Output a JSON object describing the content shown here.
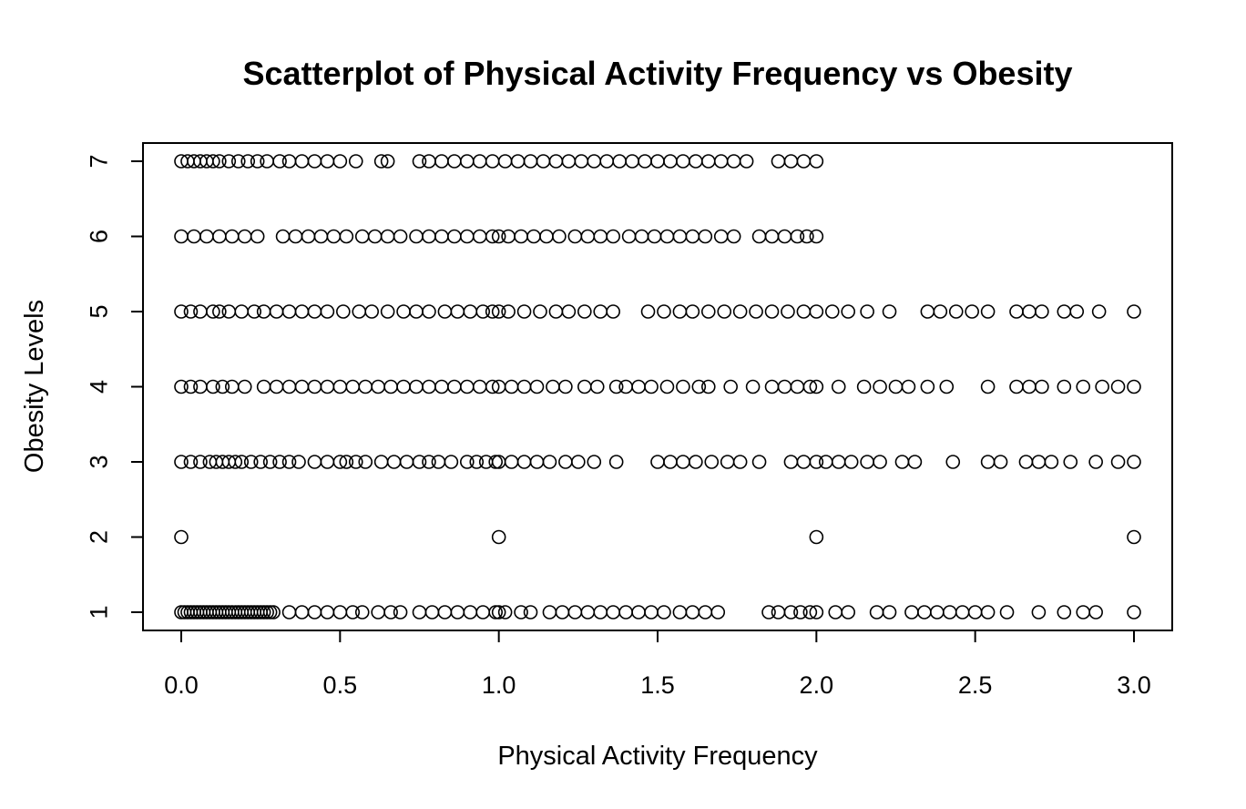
{
  "chart_data": {
    "type": "scatter",
    "title": "Scatterplot of Physical Activity Frequency vs Obesity",
    "xlabel": "Physical Activity Frequency",
    "ylabel": "Obesity Levels",
    "xlim": [
      0,
      3
    ],
    "ylim": [
      1,
      7
    ],
    "xticks": [
      "0.0",
      "0.5",
      "1.0",
      "1.5",
      "2.0",
      "2.5",
      "3.0"
    ],
    "yticks": [
      "1",
      "2",
      "3",
      "4",
      "5",
      "6",
      "7"
    ],
    "grid": false,
    "legend": false,
    "marker": "open-circle",
    "points_by_level": [
      {
        "y": 1,
        "x": [
          0,
          0.01,
          0.02,
          0.03,
          0.04,
          0.05,
          0.06,
          0.07,
          0.08,
          0.09,
          0.1,
          0.11,
          0.12,
          0.13,
          0.14,
          0.15,
          0.16,
          0.17,
          0.18,
          0.19,
          0.2,
          0.21,
          0.22,
          0.23,
          0.24,
          0.25,
          0.26,
          0.27,
          0.28,
          0.29,
          0.34,
          0.38,
          0.42,
          0.46,
          0.5,
          0.54,
          0.57,
          0.62,
          0.66,
          0.69,
          0.75,
          0.79,
          0.83,
          0.87,
          0.91,
          0.95,
          0.99,
          1.0,
          1.02,
          1.07,
          1.1,
          1.16,
          1.2,
          1.24,
          1.28,
          1.32,
          1.36,
          1.4,
          1.44,
          1.48,
          1.52,
          1.57,
          1.61,
          1.65,
          1.69,
          1.85,
          1.88,
          1.92,
          1.95,
          1.98,
          2.0,
          2.06,
          2.1,
          2.19,
          2.23,
          2.3,
          2.34,
          2.38,
          2.42,
          2.46,
          2.5,
          2.54,
          2.6,
          2.7,
          2.78,
          2.84,
          2.88,
          3.0
        ]
      },
      {
        "y": 2,
        "x": [
          0,
          1.0,
          2.0,
          3.0
        ]
      },
      {
        "y": 3,
        "x": [
          0,
          0.03,
          0.06,
          0.09,
          0.11,
          0.13,
          0.15,
          0.17,
          0.19,
          0.22,
          0.25,
          0.28,
          0.31,
          0.34,
          0.37,
          0.42,
          0.46,
          0.5,
          0.52,
          0.55,
          0.58,
          0.63,
          0.67,
          0.71,
          0.75,
          0.78,
          0.81,
          0.85,
          0.9,
          0.93,
          0.96,
          0.99,
          1.0,
          1.04,
          1.08,
          1.12,
          1.16,
          1.21,
          1.25,
          1.3,
          1.37,
          1.5,
          1.54,
          1.58,
          1.62,
          1.67,
          1.72,
          1.76,
          1.82,
          1.92,
          1.96,
          2.0,
          2.03,
          2.07,
          2.11,
          2.16,
          2.2,
          2.27,
          2.31,
          2.43,
          2.54,
          2.58,
          2.66,
          2.7,
          2.74,
          2.8,
          2.88,
          2.95,
          3.0
        ]
      },
      {
        "y": 4,
        "x": [
          0,
          0.03,
          0.06,
          0.1,
          0.13,
          0.16,
          0.2,
          0.26,
          0.3,
          0.34,
          0.38,
          0.42,
          0.46,
          0.5,
          0.54,
          0.58,
          0.62,
          0.66,
          0.7,
          0.74,
          0.78,
          0.82,
          0.86,
          0.9,
          0.94,
          0.98,
          1.0,
          1.04,
          1.08,
          1.12,
          1.17,
          1.21,
          1.27,
          1.31,
          1.37,
          1.4,
          1.44,
          1.48,
          1.53,
          1.58,
          1.63,
          1.66,
          1.73,
          1.8,
          1.86,
          1.9,
          1.94,
          1.98,
          2.0,
          2.07,
          2.15,
          2.2,
          2.25,
          2.29,
          2.35,
          2.41,
          2.54,
          2.63,
          2.67,
          2.71,
          2.78,
          2.84,
          2.9,
          2.95,
          3.0
        ]
      },
      {
        "y": 5,
        "x": [
          0,
          0.03,
          0.06,
          0.1,
          0.12,
          0.15,
          0.19,
          0.23,
          0.26,
          0.3,
          0.34,
          0.38,
          0.42,
          0.46,
          0.51,
          0.56,
          0.6,
          0.65,
          0.7,
          0.74,
          0.78,
          0.83,
          0.87,
          0.91,
          0.95,
          0.98,
          1.0,
          1.03,
          1.08,
          1.13,
          1.18,
          1.22,
          1.27,
          1.32,
          1.36,
          1.47,
          1.52,
          1.57,
          1.61,
          1.66,
          1.71,
          1.76,
          1.81,
          1.86,
          1.91,
          1.96,
          2.0,
          2.05,
          2.1,
          2.16,
          2.23,
          2.35,
          2.39,
          2.44,
          2.49,
          2.54,
          2.63,
          2.67,
          2.71,
          2.78,
          2.82,
          2.89,
          3.0
        ]
      },
      {
        "y": 6,
        "x": [
          0,
          0.04,
          0.08,
          0.12,
          0.16,
          0.2,
          0.24,
          0.32,
          0.36,
          0.4,
          0.44,
          0.48,
          0.52,
          0.57,
          0.61,
          0.65,
          0.69,
          0.74,
          0.78,
          0.82,
          0.86,
          0.9,
          0.94,
          0.98,
          1.0,
          1.03,
          1.07,
          1.11,
          1.15,
          1.19,
          1.24,
          1.28,
          1.32,
          1.36,
          1.41,
          1.45,
          1.49,
          1.53,
          1.57,
          1.61,
          1.65,
          1.7,
          1.74,
          1.82,
          1.86,
          1.9,
          1.94,
          1.97,
          2.0
        ]
      },
      {
        "y": 7,
        "x": [
          0,
          0.02,
          0.04,
          0.06,
          0.08,
          0.1,
          0.12,
          0.15,
          0.18,
          0.21,
          0.24,
          0.27,
          0.31,
          0.34,
          0.38,
          0.42,
          0.46,
          0.5,
          0.55,
          0.63,
          0.65,
          0.75,
          0.78,
          0.82,
          0.86,
          0.9,
          0.94,
          0.98,
          1.02,
          1.06,
          1.1,
          1.14,
          1.18,
          1.22,
          1.26,
          1.3,
          1.34,
          1.38,
          1.42,
          1.46,
          1.5,
          1.54,
          1.58,
          1.62,
          1.66,
          1.7,
          1.74,
          1.78,
          1.88,
          1.92,
          1.96,
          2.0
        ]
      }
    ]
  }
}
